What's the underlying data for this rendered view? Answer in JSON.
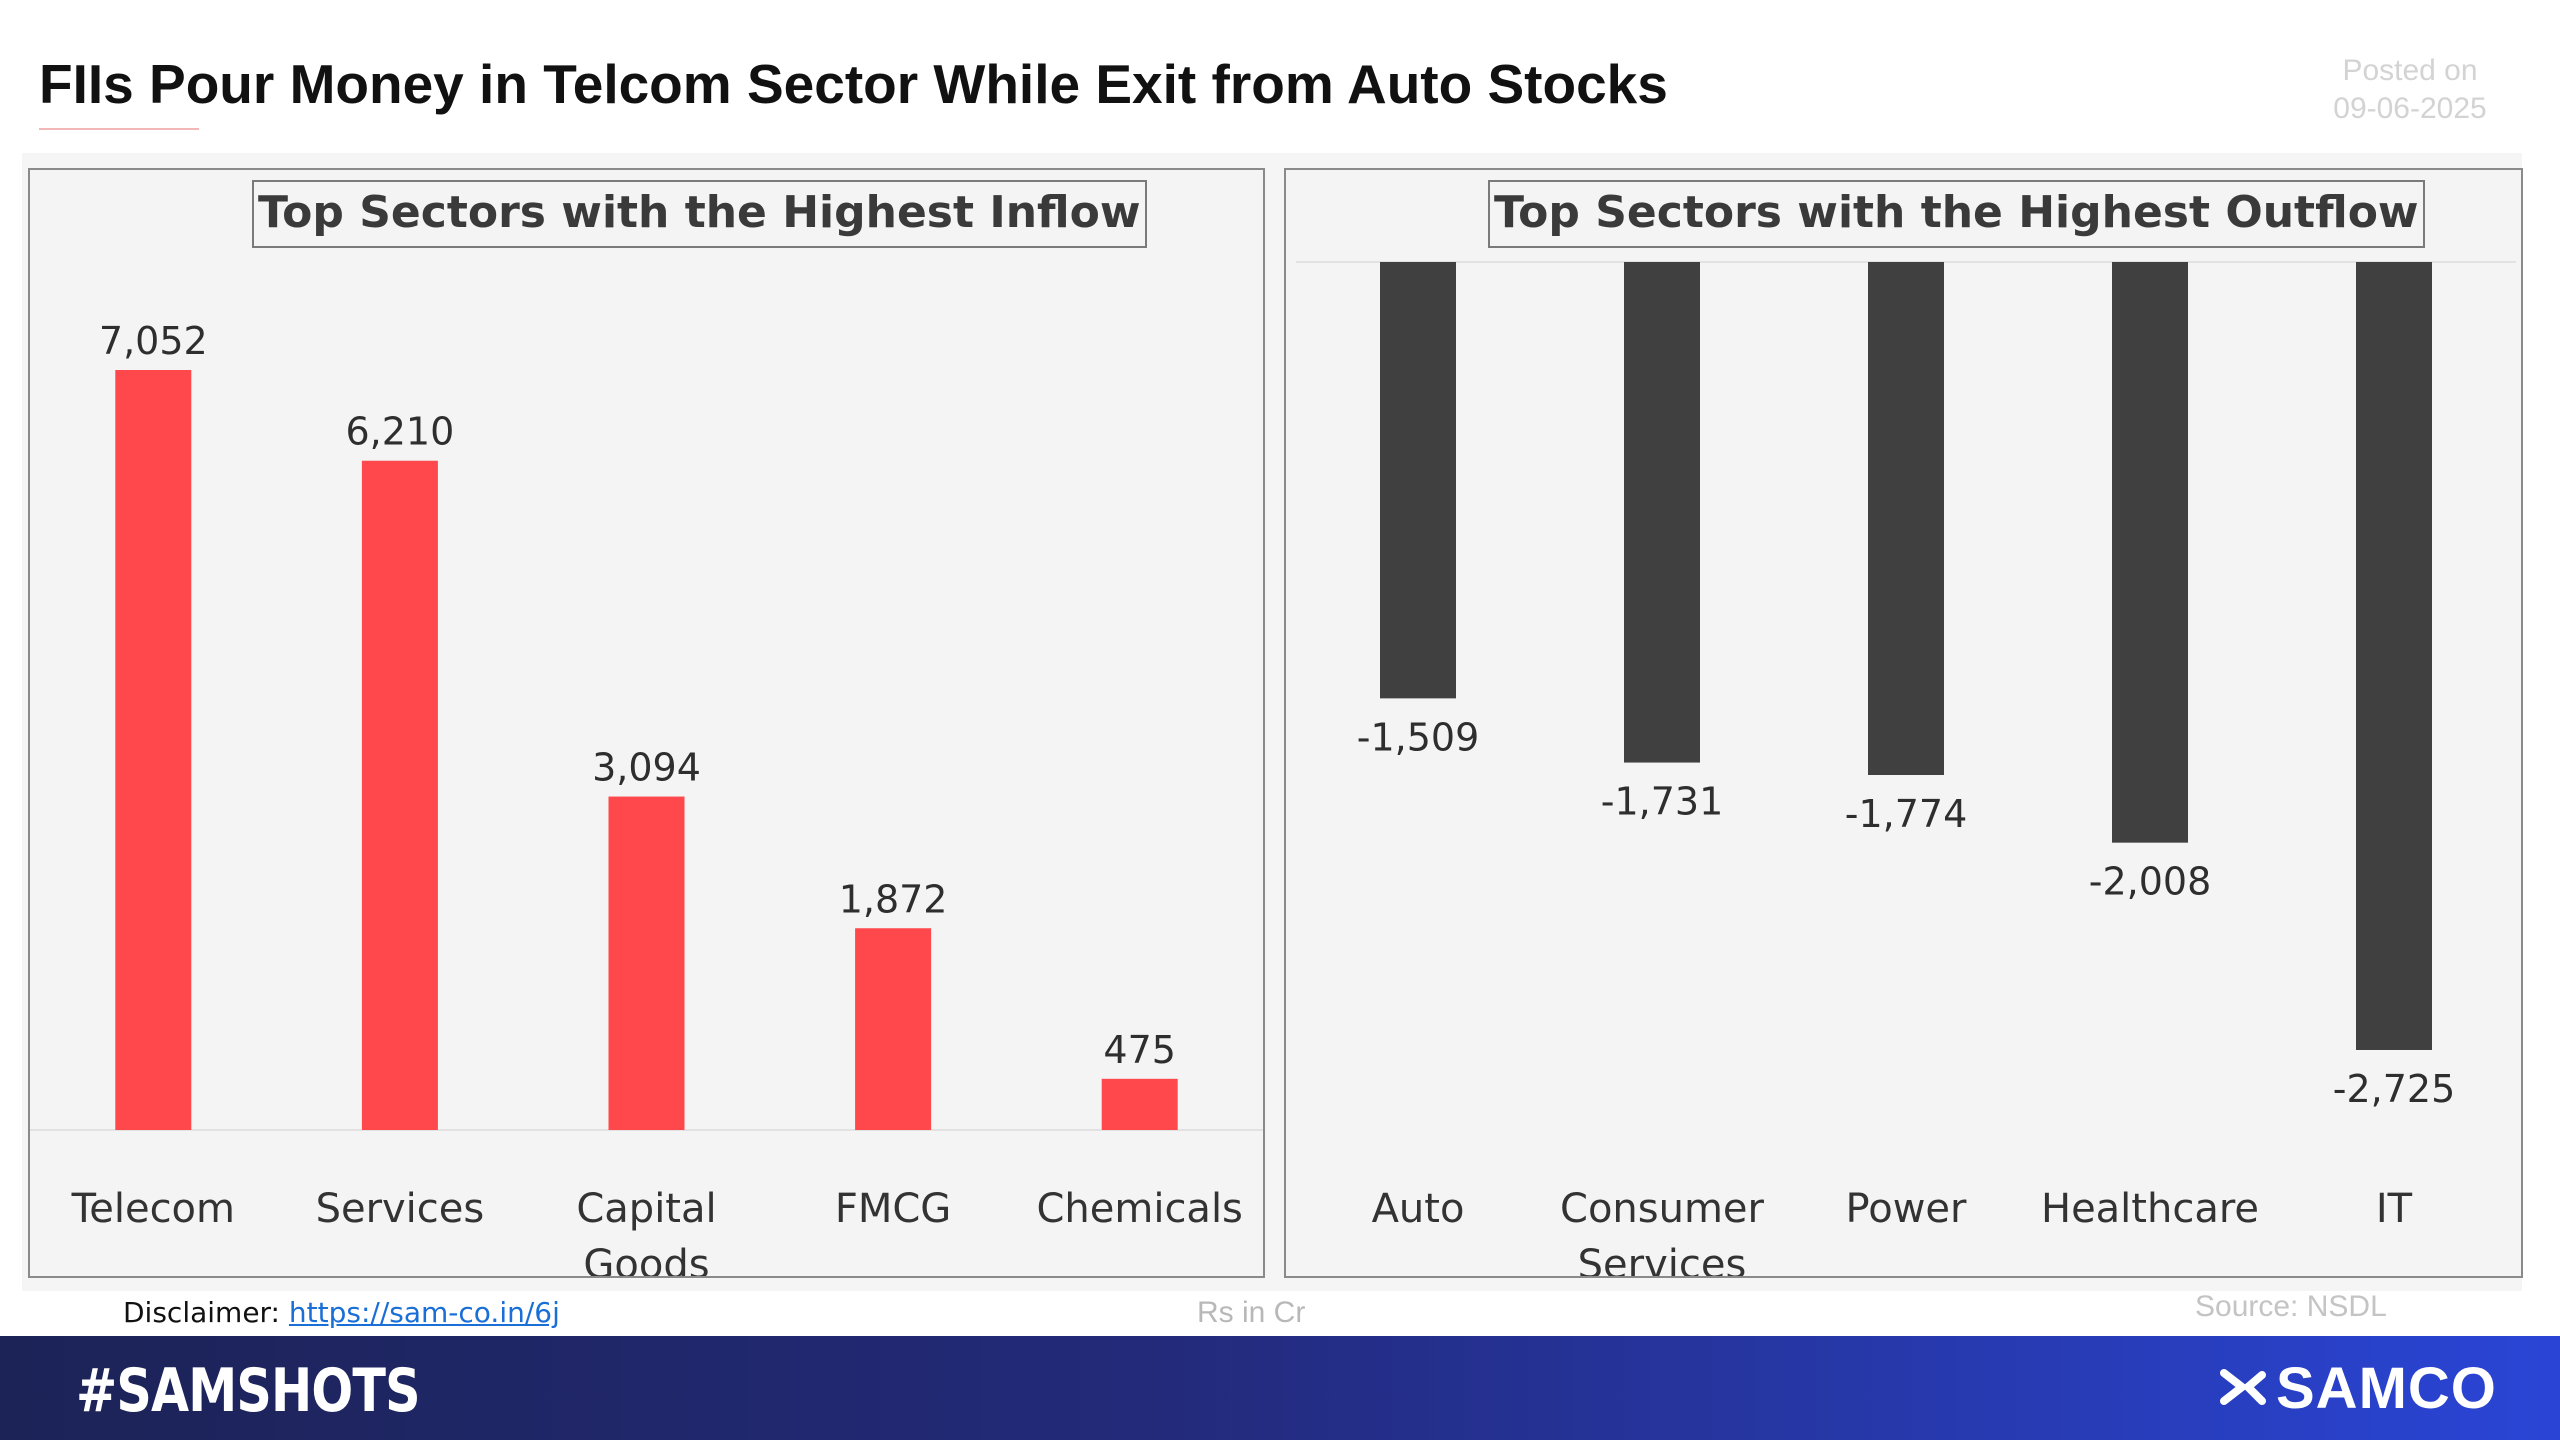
{
  "header": {
    "title": "FIIs Pour Money in Telcom Sector While Exit from Auto Stocks",
    "posted_label": "Posted on",
    "posted_date": "09-06-2025"
  },
  "footer": {
    "disclaimer_label": "Disclaimer:",
    "disclaimer_link": "https://sam-co.in/6j",
    "units": "Rs in Cr",
    "source": "Source: NSDL"
  },
  "banner": {
    "hashtag": "#SAMSHOTS",
    "brand": "SAMCO"
  },
  "colors": {
    "inflow_bar": "#ff484b",
    "outflow_bar": "#404040",
    "banner_start": "#1c2356",
    "banner_end": "#2a45d6"
  },
  "chart_data": [
    {
      "type": "bar",
      "title": "Top Sectors with the Highest Inflow",
      "categories": [
        [
          "Telecom"
        ],
        [
          "Services"
        ],
        [
          "Capital",
          "Goods"
        ],
        [
          "FMCG"
        ],
        [
          "Chemicals"
        ]
      ],
      "values": [
        7052,
        6210,
        3094,
        1872,
        475
      ],
      "value_labels": [
        "7,052",
        "6,210",
        "3,094",
        "1,872",
        "475"
      ],
      "ylim": [
        0,
        7052
      ],
      "grid": false,
      "legend": "none"
    },
    {
      "type": "bar",
      "title": "Top Sectors with the Highest Outflow",
      "categories": [
        [
          "Auto"
        ],
        [
          "Consumer",
          "Services"
        ],
        [
          "Power"
        ],
        [
          "Healthcare"
        ],
        [
          "IT"
        ]
      ],
      "values": [
        -1509,
        -1731,
        -1774,
        -2008,
        -2725
      ],
      "value_labels": [
        "-1,509",
        "-1,731",
        "-1,774",
        "-2,008",
        "-2,725"
      ],
      "ylim": [
        -2725,
        0
      ],
      "grid": false,
      "legend": "none"
    }
  ]
}
